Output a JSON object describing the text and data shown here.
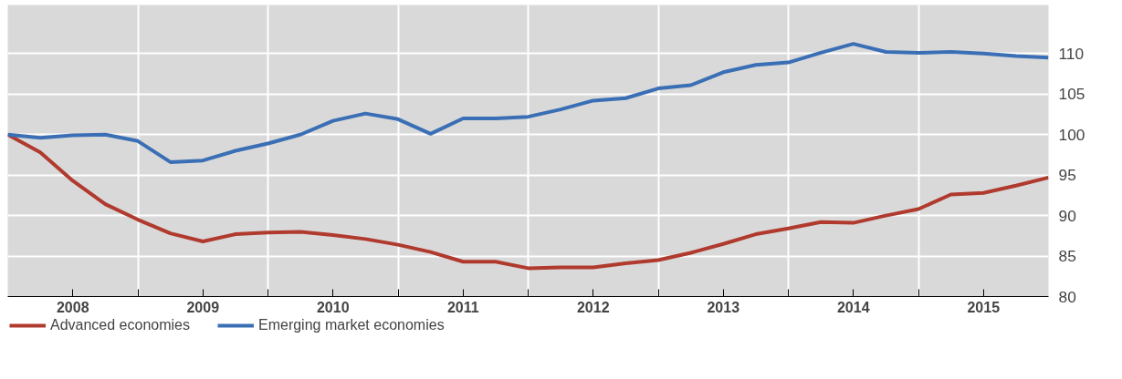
{
  "chart_data": {
    "type": "line",
    "x": [
      2008.0,
      2008.25,
      2008.5,
      2008.75,
      2009.0,
      2009.25,
      2009.5,
      2009.75,
      2010.0,
      2010.25,
      2010.5,
      2010.75,
      2011.0,
      2011.25,
      2011.5,
      2011.75,
      2012.0,
      2012.25,
      2012.5,
      2012.75,
      2013.0,
      2013.25,
      2013.5,
      2013.75,
      2014.0,
      2014.25,
      2014.5,
      2014.75,
      2015.0,
      2015.25,
      2015.5,
      2015.75,
      2016.0
    ],
    "series": [
      {
        "name": "Advanced economies",
        "color": "#b03a2e",
        "values": [
          100,
          97.8,
          94.3,
          91.4,
          89.5,
          87.8,
          86.8,
          87.7,
          87.9,
          88.0,
          87.6,
          87.1,
          86.4,
          85.5,
          84.3,
          84.3,
          83.5,
          83.6,
          83.6,
          84.1,
          84.5,
          85.4,
          86.5,
          87.7,
          88.4,
          89.2,
          89.1,
          90.0,
          90.8,
          92.6,
          92.8,
          93.7,
          94.7
        ]
      },
      {
        "name": "Emerging market economies",
        "color": "#3a6fb5",
        "values": [
          100,
          99.6,
          99.9,
          100,
          99.2,
          96.6,
          96.8,
          98.0,
          98.9,
          100,
          101.7,
          102.6,
          101.9,
          100.1,
          102.0,
          102.0,
          102.2,
          103.1,
          104.2,
          104.5,
          105.7,
          106.1,
          107.7,
          108.6,
          108.9,
          110.1,
          111.2,
          110.2,
          110.1,
          110.2,
          110.0,
          109.7,
          109.5
        ]
      }
    ],
    "xlim": [
      2008,
      2016
    ],
    "xticks": [
      {
        "value": 2008.5,
        "label": "2008"
      },
      {
        "value": 2009,
        "label": null
      },
      {
        "value": 2009.5,
        "label": "2009"
      },
      {
        "value": 2010,
        "label": null
      },
      {
        "value": 2010.5,
        "label": "2010"
      },
      {
        "value": 2011,
        "label": null
      },
      {
        "value": 2011.5,
        "label": "2011"
      },
      {
        "value": 2012,
        "label": null
      },
      {
        "value": 2012.5,
        "label": "2012"
      },
      {
        "value": 2013,
        "label": null
      },
      {
        "value": 2013.5,
        "label": "2013"
      },
      {
        "value": 2014,
        "label": null
      },
      {
        "value": 2014.5,
        "label": "2014"
      },
      {
        "value": 2015,
        "label": null
      },
      {
        "value": 2015.5,
        "label": "2015"
      }
    ],
    "ylim": [
      80,
      116
    ],
    "yticks": [
      80,
      85,
      90,
      95,
      100,
      105,
      110
    ],
    "grid": true,
    "legend": "bottom left",
    "marker": "none",
    "line_style": "solid"
  }
}
